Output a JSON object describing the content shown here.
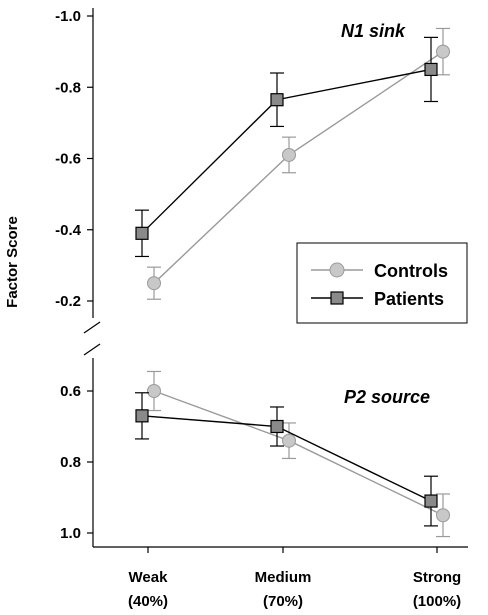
{
  "chart_data": {
    "type": "line",
    "ylabel": "Factor Score",
    "categories": [
      "Weak\n(40%)",
      "Medium\n(70%)",
      "Strong\n(100%)"
    ],
    "category_lines": [
      [
        "Weak",
        "(40%)"
      ],
      [
        "Medium",
        "(70%)"
      ],
      [
        "Strong",
        "(100%)"
      ]
    ],
    "legend": {
      "placement": "inside-right",
      "entries": [
        "Controls",
        "Patients"
      ]
    },
    "colors": {
      "controls_line": "#9a9a9a",
      "controls_fill": "#c8c8c8",
      "patients_line": "#000000",
      "patients_fill": "#8a8a8a"
    },
    "panels": [
      {
        "title": "N1 sink",
        "ylim": [
          -1.0,
          -0.1
        ],
        "y_inverted": true,
        "yticks": [
          -1.0,
          -0.8,
          -0.6,
          -0.4,
          -0.2
        ],
        "ytick_labels": [
          "-1.0",
          "-0.8",
          "-0.6",
          "-0.4",
          "-0.2"
        ],
        "series": [
          {
            "name": "Controls",
            "marker": "circle",
            "values": [
              -0.25,
              -0.61,
              -0.9
            ],
            "errors": [
              0.045,
              0.05,
              0.065
            ]
          },
          {
            "name": "Patients",
            "marker": "square",
            "values": [
              -0.39,
              -0.765,
              -0.85
            ],
            "errors": [
              0.065,
              0.075,
              0.09
            ]
          }
        ]
      },
      {
        "title": "P2 source",
        "ylim": [
          0.55,
          1.02
        ],
        "y_inverted": true,
        "yticks": [
          0.6,
          0.8,
          1.0
        ],
        "ytick_labels": [
          "0.6",
          "0.8",
          "1.0"
        ],
        "series": [
          {
            "name": "Controls",
            "marker": "circle",
            "values": [
              0.6,
              0.74,
              0.95
            ],
            "errors": [
              0.055,
              0.05,
              0.06
            ]
          },
          {
            "name": "Patients",
            "marker": "square",
            "values": [
              0.67,
              0.7,
              0.91
            ],
            "errors": [
              0.065,
              0.055,
              0.07
            ]
          }
        ]
      }
    ]
  }
}
